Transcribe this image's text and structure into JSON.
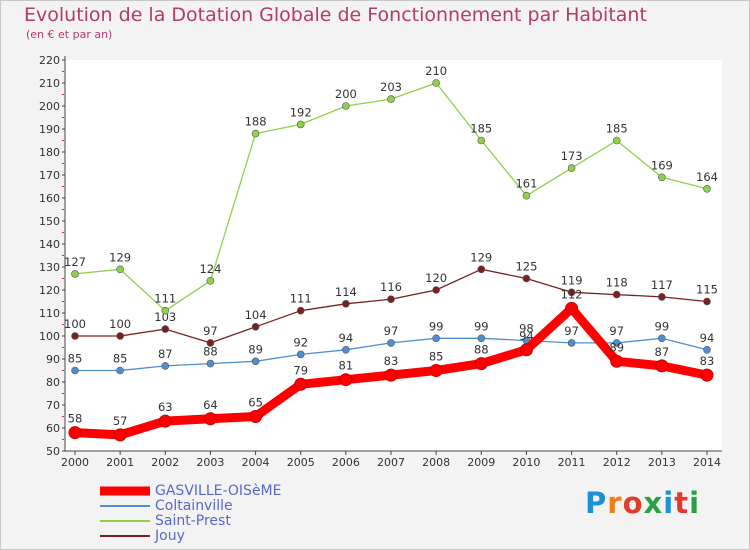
{
  "title": "Evolution de la Dotation Globale de Fonctionnement par Habitant",
  "subtitle": "(en € et par an)",
  "logo": {
    "text": "Proxiti",
    "colors": [
      "#1f8fd6",
      "#ef7d1a",
      "#e23b2a",
      "#2aa045",
      "#1f8fd6",
      "#e23b2a",
      "#2aa045"
    ]
  },
  "chart_data": {
    "type": "line",
    "title": "Evolution de la Dotation Globale de Fonctionnement par Habitant",
    "subtitle": "(en € et par an)",
    "xlabel": "",
    "ylabel": "",
    "ylim": [
      50,
      220
    ],
    "ytick_step": 10,
    "grid": false,
    "legend_position": "bottom-left",
    "x": [
      2000,
      2001,
      2002,
      2003,
      2004,
      2005,
      2006,
      2007,
      2008,
      2009,
      2010,
      2011,
      2012,
      2013,
      2014
    ],
    "series": [
      {
        "name": "Jouy",
        "color": "#7a2020",
        "values": [
          100,
          100,
          103,
          97,
          104,
          111,
          114,
          116,
          120,
          129,
          125,
          119,
          118,
          117,
          115
        ]
      },
      {
        "name": "Saint-Prest",
        "color": "#8fd14a",
        "values": [
          127,
          129,
          111,
          124,
          188,
          192,
          200,
          203,
          210,
          185,
          161,
          173,
          185,
          169,
          164
        ]
      },
      {
        "name": "Coltainville",
        "color": "#4f8fd0",
        "values": [
          85,
          85,
          87,
          88,
          89,
          92,
          94,
          97,
          99,
          99,
          98,
          97,
          97,
          99,
          94
        ]
      },
      {
        "name": "GASVILLE-OISèME",
        "color": "#ff0000",
        "values": [
          58,
          57,
          63,
          64,
          65,
          79,
          81,
          83,
          85,
          88,
          94,
          112,
          89,
          87,
          83
        ]
      }
    ],
    "legend_order": [
      "GASVILLE-OISèME",
      "Coltainville",
      "Saint-Prest",
      "Jouy"
    ]
  }
}
